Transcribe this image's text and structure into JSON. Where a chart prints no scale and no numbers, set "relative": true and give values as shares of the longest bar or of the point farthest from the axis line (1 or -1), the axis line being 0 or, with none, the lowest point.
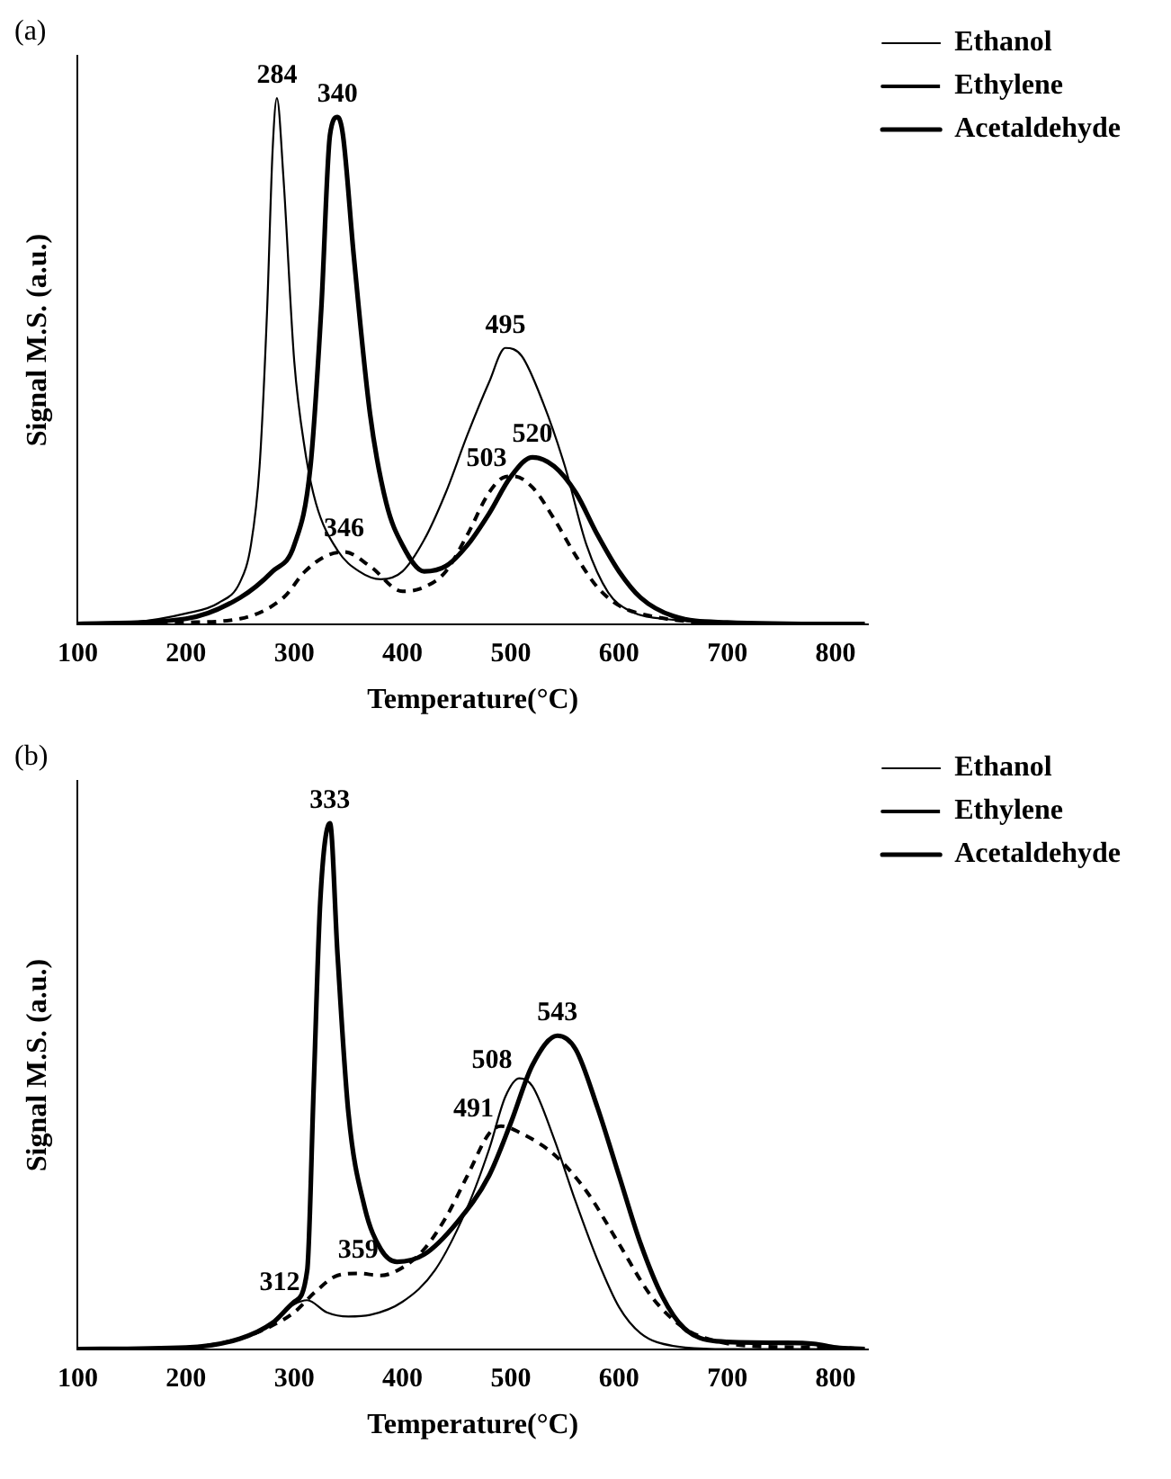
{
  "chart_data": [
    {
      "type": "line",
      "title": "(a)",
      "xlabel": "Temperature(°C)",
      "ylabel": "Signal M.S. (a.u.)",
      "relative": true,
      "xlim": [
        100,
        830
      ],
      "xticks": [
        100,
        200,
        300,
        400,
        500,
        600,
        700,
        800
      ],
      "grid": false,
      "legend": "top right",
      "marker": "none",
      "series": [
        {
          "name": "Ethanol",
          "color": "#000000",
          "line_style": "solid",
          "x": [
            100,
            150,
            200,
            230,
            250,
            260,
            268,
            275,
            280,
            284,
            290,
            300,
            310,
            320,
            340,
            360,
            380,
            400,
            420,
            440,
            460,
            480,
            495,
            510,
            530,
            550,
            570,
            590,
            610,
            650,
            700,
            800,
            827
          ],
          "values": [
            0,
            0.003,
            0.02,
            0.04,
            0.08,
            0.15,
            0.3,
            0.6,
            0.9,
            1,
            0.85,
            0.5,
            0.33,
            0.23,
            0.14,
            0.1,
            0.085,
            0.1,
            0.16,
            0.25,
            0.36,
            0.46,
            0.525,
            0.51,
            0.42,
            0.3,
            0.15,
            0.06,
            0.025,
            0.008,
            0.002,
            0,
            0
          ]
        },
        {
          "name": "Ethylene",
          "color": "#000000",
          "line_style": "dashed",
          "x": [
            100,
            200,
            250,
            290,
            310,
            330,
            346,
            370,
            400,
            420,
            440,
            460,
            480,
            495,
            503,
            520,
            540,
            560,
            580,
            600,
            630,
            680,
            800,
            827
          ],
          "values": [
            0,
            0.003,
            0.01,
            0.05,
            0.1,
            0.13,
            0.137,
            0.11,
            0.062,
            0.07,
            0.1,
            0.17,
            0.25,
            0.28,
            0.281,
            0.26,
            0.2,
            0.13,
            0.07,
            0.035,
            0.015,
            0.003,
            0,
            0
          ]
        },
        {
          "name": "Acetaldehyde",
          "color": "#000000",
          "line_style": "solid",
          "x": [
            100,
            200,
            250,
            280,
            300,
            315,
            325,
            333,
            340,
            345,
            355,
            370,
            385,
            400,
            420,
            440,
            460,
            480,
            500,
            520,
            540,
            560,
            580,
            600,
            620,
            650,
            700,
            800,
            827
          ],
          "values": [
            0,
            0.01,
            0.05,
            0.1,
            0.15,
            0.3,
            0.6,
            0.93,
            0.964,
            0.93,
            0.7,
            0.4,
            0.23,
            0.15,
            0.1,
            0.11,
            0.15,
            0.21,
            0.28,
            0.317,
            0.3,
            0.25,
            0.17,
            0.1,
            0.05,
            0.015,
            0.003,
            0,
            0
          ]
        }
      ],
      "annotations": [
        {
          "text": "284",
          "x": 284,
          "y": 1
        },
        {
          "text": "340",
          "x": 340,
          "y": 0.964
        },
        {
          "text": "346",
          "x": 346,
          "y": 0.137
        },
        {
          "text": "495",
          "x": 495,
          "y": 0.525
        },
        {
          "text": "520",
          "x": 520,
          "y": 0.317
        },
        {
          "text": "503",
          "x": 503,
          "y": 0.281
        }
      ]
    },
    {
      "type": "line",
      "title": "(b)",
      "xlabel": "Temperature(°C)",
      "ylabel": "Signal M.S. (a.u.)",
      "relative": true,
      "xlim": [
        100,
        830
      ],
      "xticks": [
        100,
        200,
        300,
        400,
        500,
        600,
        700,
        800
      ],
      "grid": false,
      "legend": "top right",
      "marker": "none",
      "series": [
        {
          "name": "Ethanol",
          "color": "#000000",
          "line_style": "solid",
          "x": [
            100,
            200,
            250,
            280,
            300,
            312,
            330,
            350,
            370,
            400,
            430,
            460,
            480,
            495,
            508,
            520,
            540,
            560,
            580,
            600,
            620,
            650,
            700,
            827
          ],
          "values": [
            0,
            0.003,
            0.02,
            0.05,
            0.085,
            0.093,
            0.07,
            0.062,
            0.065,
            0.09,
            0.15,
            0.27,
            0.38,
            0.48,
            0.515,
            0.5,
            0.4,
            0.28,
            0.17,
            0.08,
            0.03,
            0.006,
            0,
            0
          ]
        },
        {
          "name": "Ethylene",
          "color": "#000000",
          "line_style": "dashed",
          "x": [
            100,
            200,
            250,
            280,
            300,
            320,
            340,
            359,
            380,
            400,
            420,
            440,
            460,
            480,
            491,
            510,
            540,
            570,
            600,
            630,
            660,
            690,
            730,
            800,
            827
          ],
          "values": [
            0,
            0.003,
            0.02,
            0.045,
            0.07,
            0.11,
            0.14,
            0.144,
            0.14,
            0.155,
            0.19,
            0.25,
            0.33,
            0.41,
            0.424,
            0.41,
            0.37,
            0.3,
            0.2,
            0.1,
            0.04,
            0.015,
            0.005,
            0.003,
            0
          ]
        },
        {
          "name": "Acetaldehyde",
          "color": "#000000",
          "line_style": "solid",
          "x": [
            100,
            200,
            250,
            280,
            300,
            312,
            318,
            324,
            333,
            340,
            350,
            365,
            380,
            395,
            420,
            450,
            480,
            500,
            520,
            543,
            560,
            580,
            600,
            620,
            640,
            660,
            690,
            750,
            780,
            800,
            827
          ],
          "values": [
            0,
            0.003,
            0.02,
            0.05,
            0.09,
            0.15,
            0.5,
            0.85,
            1,
            0.75,
            0.45,
            0.27,
            0.19,
            0.166,
            0.18,
            0.24,
            0.33,
            0.43,
            0.54,
            0.596,
            0.57,
            0.46,
            0.33,
            0.2,
            0.1,
            0.04,
            0.015,
            0.012,
            0.01,
            0.003,
            0
          ]
        }
      ],
      "annotations": [
        {
          "text": "333",
          "x": 333,
          "y": 1
        },
        {
          "text": "312",
          "x": 312,
          "y": 0.093
        },
        {
          "text": "359",
          "x": 359,
          "y": 0.144
        },
        {
          "text": "508",
          "x": 508,
          "y": 0.515
        },
        {
          "text": "543",
          "x": 543,
          "y": 0.596
        },
        {
          "text": "491",
          "x": 491,
          "y": 0.424
        }
      ]
    }
  ]
}
